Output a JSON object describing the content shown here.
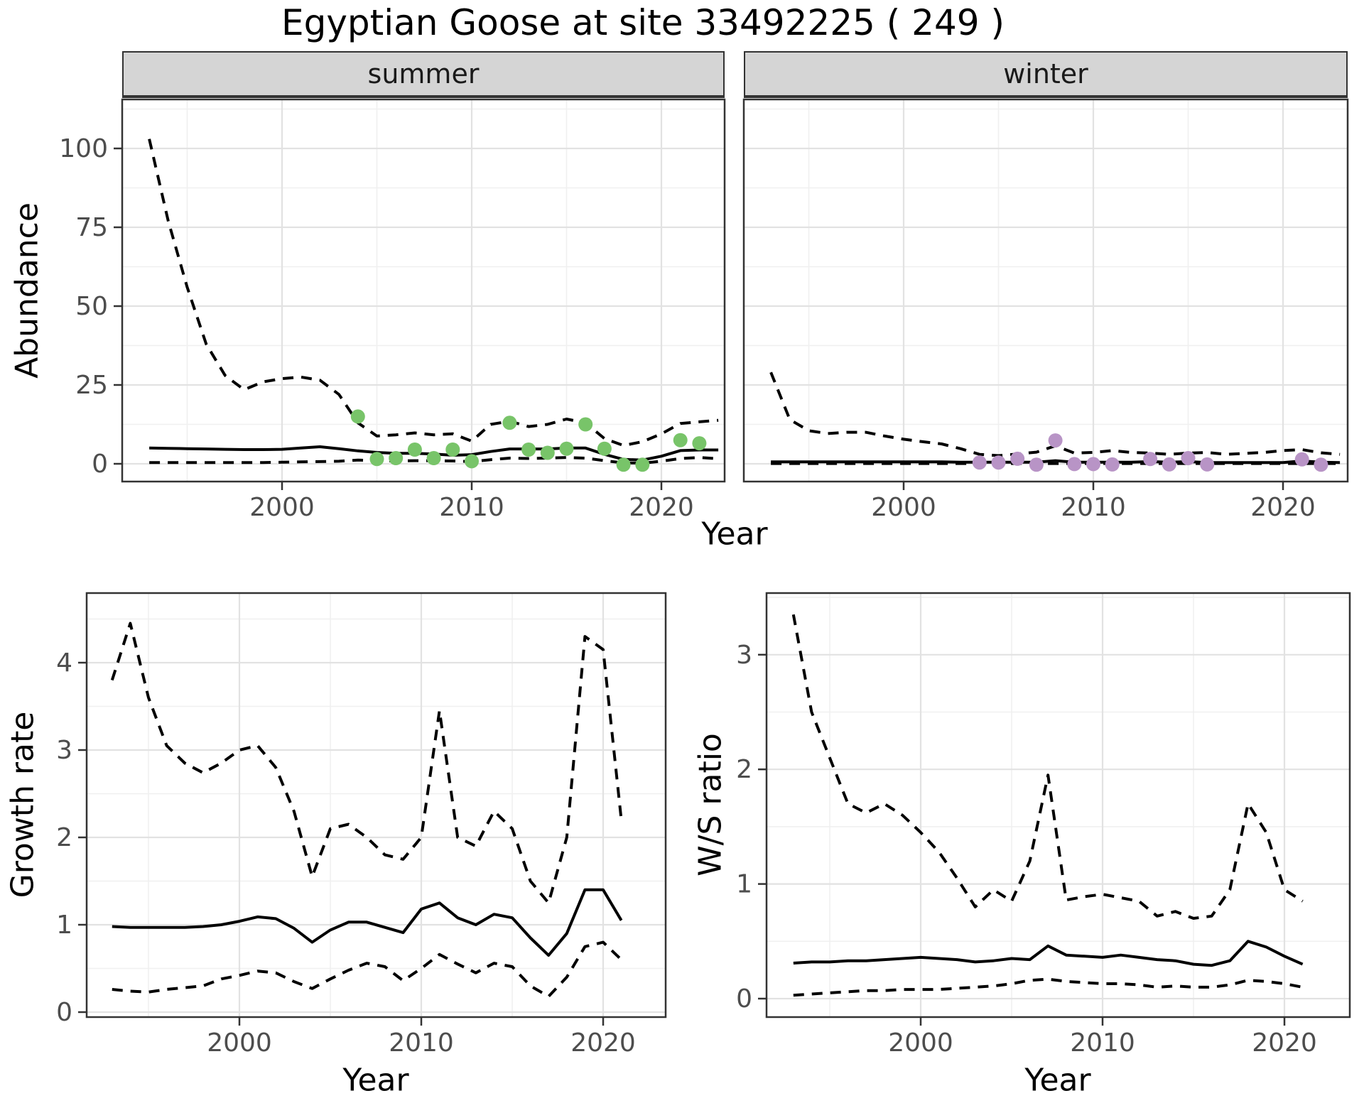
{
  "title": "Egyptian Goose at site 33492225 ( 249 )",
  "facets": [
    "summer",
    "winter"
  ],
  "axis_titles": {
    "x": "Year",
    "y_top": "Abundance",
    "y_growth": "Growth rate",
    "y_ws": "W/S ratio"
  },
  "colors": {
    "summer_point": "#78C469",
    "winter_point": "#B894C6",
    "line": "#000000",
    "strip_bg": "#D5D5D5",
    "grid_major": "#E2E2E2",
    "grid_minor": "#F0F0F0",
    "panel_border": "#333333",
    "tick_text": "#4D4D4D"
  },
  "chart_data": [
    {
      "id": "abundance-summer",
      "type": "line",
      "facet": "summer",
      "xlabel": "Year",
      "ylabel": "Abundance",
      "xlim": [
        1991.6,
        2023.4
      ],
      "ylim": [
        -3,
        115.5
      ],
      "x_ticks": [
        2000,
        2010,
        2020
      ],
      "y_ticks": [
        0,
        25,
        50,
        75,
        100
      ],
      "x": [
        1993,
        1994,
        1995,
        1996,
        1997,
        1998,
        1999,
        2000,
        2001,
        2002,
        2003,
        2004,
        2005,
        2006,
        2007,
        2008,
        2009,
        2010,
        2011,
        2012,
        2013,
        2014,
        2015,
        2016,
        2017,
        2018,
        2019,
        2020,
        2021,
        2022,
        2023
      ],
      "series": [
        {
          "name": "mean",
          "style": "solid",
          "values": [
            5.0,
            4.9,
            4.8,
            4.7,
            4.6,
            4.5,
            4.5,
            4.6,
            5.0,
            5.4,
            4.8,
            4.1,
            3.6,
            3.3,
            3.3,
            3.1,
            2.7,
            2.9,
            3.9,
            4.7,
            4.7,
            4.7,
            5.0,
            5.0,
            3.0,
            1.4,
            1.2,
            2.4,
            4.2,
            4.4,
            4.4
          ]
        },
        {
          "name": "upper_ci",
          "style": "dashed",
          "values": [
            103,
            77,
            56,
            38,
            28,
            23.5,
            26,
            27,
            27.5,
            26.5,
            22,
            13,
            8.8,
            9.2,
            9.8,
            9.2,
            9.5,
            7.2,
            12.5,
            13.5,
            11.8,
            12.5,
            14.2,
            13,
            8,
            5.8,
            7,
            9.5,
            12.8,
            13.3,
            13.8
          ]
        },
        {
          "name": "lower_ci",
          "style": "dashed",
          "values": [
            0.4,
            0.4,
            0.4,
            0.4,
            0.4,
            0.4,
            0.4,
            0.5,
            0.6,
            0.7,
            0.8,
            1.2,
            1.0,
            0.9,
            1.0,
            1.0,
            0.9,
            0.7,
            1.3,
            1.8,
            1.7,
            1.8,
            2.0,
            1.8,
            1.0,
            0.3,
            0.2,
            0.8,
            1.7,
            2.0,
            1.6
          ]
        }
      ],
      "points": {
        "name": "observed-counts",
        "color_key": "summer_point",
        "data": [
          [
            2004,
            15
          ],
          [
            2005,
            1.5
          ],
          [
            2006,
            1.8
          ],
          [
            2007,
            4.5
          ],
          [
            2008,
            1.8
          ],
          [
            2009,
            4.5
          ],
          [
            2010,
            0.8
          ],
          [
            2012,
            13
          ],
          [
            2013,
            4.5
          ],
          [
            2014,
            3.5
          ],
          [
            2015,
            4.8
          ],
          [
            2016,
            12.5
          ],
          [
            2017,
            4.8
          ],
          [
            2018,
            -0.3
          ],
          [
            2019,
            -0.3
          ],
          [
            2021,
            7.5
          ],
          [
            2022,
            6.5
          ]
        ]
      }
    },
    {
      "id": "abundance-winter",
      "type": "line",
      "facet": "winter",
      "xlabel": "Year",
      "ylabel": "Abundance",
      "xlim": [
        1991.6,
        2023.4
      ],
      "ylim": [
        -3,
        115.5
      ],
      "x_ticks": [
        2000,
        2010,
        2020
      ],
      "y_ticks": [
        0,
        25,
        50,
        75,
        100
      ],
      "x": [
        1993,
        1994,
        1995,
        1996,
        1997,
        1998,
        1999,
        2000,
        2001,
        2002,
        2003,
        2004,
        2005,
        2006,
        2007,
        2008,
        2009,
        2010,
        2011,
        2012,
        2013,
        2014,
        2015,
        2016,
        2017,
        2018,
        2019,
        2020,
        2021,
        2022,
        2023
      ],
      "series": [
        {
          "name": "mean",
          "style": "solid",
          "values": [
            0.6,
            0.6,
            0.6,
            0.6,
            0.6,
            0.6,
            0.6,
            0.6,
            0.6,
            0.6,
            0.5,
            0.5,
            0.5,
            0.5,
            0.5,
            1.0,
            0.5,
            0.5,
            0.5,
            0.5,
            0.7,
            0.5,
            0.7,
            0.4,
            0.4,
            0.4,
            0.4,
            0.4,
            0.9,
            0.5,
            0.4
          ]
        },
        {
          "name": "upper_ci",
          "style": "dashed",
          "values": [
            29,
            14,
            10.5,
            9.6,
            10,
            10,
            8.8,
            7.8,
            7,
            6.3,
            4.8,
            3.0,
            2.6,
            3.1,
            3.7,
            5.7,
            3.4,
            3.6,
            4.2,
            3.6,
            3.4,
            3.0,
            3.4,
            3.6,
            3.0,
            3.3,
            3.6,
            4.2,
            4.5,
            3.5,
            3.0
          ]
        },
        {
          "name": "lower_ci",
          "style": "dashed",
          "values": [
            0.1,
            0.1,
            0.1,
            0.1,
            0.1,
            0.1,
            0.1,
            0.1,
            0.1,
            0.1,
            0.1,
            0.1,
            0.1,
            0.1,
            0.1,
            0.1,
            0.1,
            0.1,
            0.1,
            0.1,
            0.1,
            0.1,
            0.1,
            0.1,
            0.1,
            0.1,
            0.1,
            0.1,
            0.1,
            0.1,
            0.1
          ]
        }
      ],
      "points": {
        "name": "observed-counts",
        "color_key": "winter_point",
        "data": [
          [
            2004,
            0.4
          ],
          [
            2005,
            0.4
          ],
          [
            2006,
            1.6
          ],
          [
            2007,
            -0.3
          ],
          [
            2008,
            7.4
          ],
          [
            2009,
            -0.1
          ],
          [
            2010,
            -0.1
          ],
          [
            2011,
            -0.2
          ],
          [
            2013,
            1.5
          ],
          [
            2014,
            -0.2
          ],
          [
            2015,
            1.8
          ],
          [
            2016,
            -0.2
          ],
          [
            2021,
            1.4
          ],
          [
            2022,
            -0.3
          ]
        ]
      }
    },
    {
      "id": "growth-rate",
      "type": "line",
      "facet": "",
      "xlabel": "Year",
      "ylabel": "Growth rate",
      "xlim": [
        1991.6,
        2023.4
      ],
      "ylim": [
        0,
        4.8
      ],
      "x_ticks": [
        2000,
        2010,
        2020
      ],
      "y_ticks": [
        0,
        1,
        2,
        3,
        4
      ],
      "x": [
        1993,
        1994,
        1995,
        1996,
        1997,
        1998,
        1999,
        2000,
        2001,
        2002,
        2003,
        2004,
        2005,
        2006,
        2007,
        2008,
        2009,
        2010,
        2011,
        2012,
        2013,
        2014,
        2015,
        2016,
        2017,
        2018,
        2019,
        2020,
        2021
      ],
      "series": [
        {
          "name": "mean",
          "style": "solid",
          "values": [
            0.98,
            0.97,
            0.97,
            0.97,
            0.97,
            0.98,
            1.0,
            1.04,
            1.09,
            1.07,
            0.96,
            0.8,
            0.94,
            1.03,
            1.03,
            0.97,
            0.91,
            1.18,
            1.25,
            1.08,
            1.0,
            1.12,
            1.08,
            0.85,
            0.65,
            0.9,
            1.4,
            1.4,
            1.05
          ]
        },
        {
          "name": "upper_ci",
          "style": "dashed",
          "values": [
            3.8,
            4.45,
            3.6,
            3.05,
            2.85,
            2.74,
            2.85,
            3.0,
            3.05,
            2.8,
            2.3,
            1.55,
            2.1,
            2.15,
            2.0,
            1.8,
            1.75,
            2.0,
            3.45,
            2.0,
            1.9,
            2.3,
            2.1,
            1.5,
            1.25,
            2.0,
            4.3,
            4.15,
            2.2
          ]
        },
        {
          "name": "lower_ci",
          "style": "dashed",
          "values": [
            0.26,
            0.24,
            0.23,
            0.26,
            0.28,
            0.3,
            0.38,
            0.42,
            0.47,
            0.45,
            0.35,
            0.27,
            0.38,
            0.48,
            0.56,
            0.52,
            0.36,
            0.5,
            0.66,
            0.55,
            0.45,
            0.56,
            0.52,
            0.3,
            0.18,
            0.4,
            0.75,
            0.8,
            0.6
          ]
        }
      ]
    },
    {
      "id": "ws-ratio",
      "type": "line",
      "facet": "",
      "xlabel": "Year",
      "ylabel": "W/S ratio",
      "xlim": [
        1991.6,
        2023.4
      ],
      "ylim": [
        0,
        3.55
      ],
      "x_ticks": [
        2000,
        2010,
        2020
      ],
      "y_ticks": [
        0,
        1,
        2,
        3
      ],
      "x": [
        1993,
        1994,
        1995,
        1996,
        1997,
        1998,
        1999,
        2000,
        2001,
        2002,
        2003,
        2004,
        2005,
        2006,
        2007,
        2008,
        2009,
        2010,
        2011,
        2012,
        2013,
        2014,
        2015,
        2016,
        2017,
        2018,
        2019,
        2020,
        2021
      ],
      "series": [
        {
          "name": "mean",
          "style": "solid",
          "values": [
            0.31,
            0.32,
            0.32,
            0.33,
            0.33,
            0.34,
            0.35,
            0.36,
            0.35,
            0.34,
            0.32,
            0.33,
            0.35,
            0.34,
            0.46,
            0.38,
            0.37,
            0.36,
            0.38,
            0.36,
            0.34,
            0.33,
            0.3,
            0.29,
            0.33,
            0.5,
            0.45,
            0.37,
            0.3
          ]
        },
        {
          "name": "upper_ci",
          "style": "dashed",
          "values": [
            3.35,
            2.5,
            2.1,
            1.7,
            1.62,
            1.7,
            1.6,
            1.45,
            1.28,
            1.05,
            0.8,
            0.95,
            0.85,
            1.2,
            1.95,
            0.86,
            0.89,
            0.91,
            0.88,
            0.85,
            0.72,
            0.76,
            0.7,
            0.72,
            0.95,
            1.7,
            1.45,
            0.95,
            0.85
          ]
        },
        {
          "name": "lower_ci",
          "style": "dashed",
          "values": [
            0.03,
            0.04,
            0.05,
            0.06,
            0.07,
            0.07,
            0.08,
            0.08,
            0.08,
            0.09,
            0.1,
            0.11,
            0.13,
            0.16,
            0.17,
            0.15,
            0.14,
            0.13,
            0.13,
            0.12,
            0.1,
            0.11,
            0.1,
            0.1,
            0.12,
            0.16,
            0.15,
            0.13,
            0.1
          ]
        }
      ]
    }
  ]
}
